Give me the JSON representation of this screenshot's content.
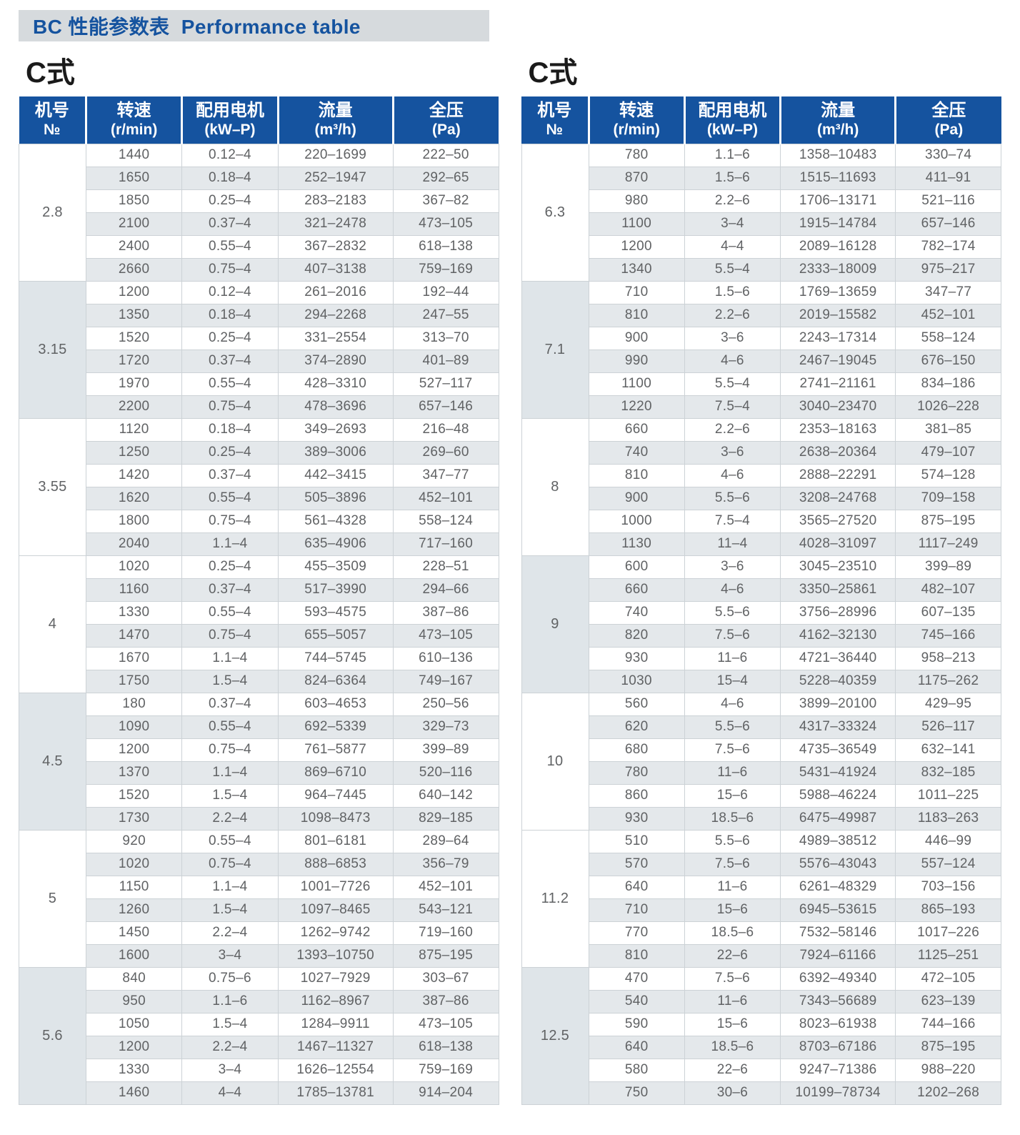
{
  "header": {
    "title": "BC 性能参数表  Performance table"
  },
  "colors": {
    "accent_blue": "#15539f",
    "title_bar_bg": "#d6dadd",
    "row_stripe": "#e4e8eb",
    "group_shade": "#dfe5e9",
    "grid_border": "#ccd2d6",
    "data_text": "#606264",
    "section_title": "#1a1a1a"
  },
  "columns": [
    {
      "key": "no",
      "label": "机号",
      "sub": "№"
    },
    {
      "key": "speed",
      "label": "转速",
      "sub": "(r/min)"
    },
    {
      "key": "motor",
      "label": "配用电机",
      "sub": "(kW–P)"
    },
    {
      "key": "flow",
      "label": "流量",
      "sub": "(m³/h)"
    },
    {
      "key": "pressure",
      "label": "全压",
      "sub": "(Pa)"
    }
  ],
  "tables": [
    {
      "title": "C式",
      "groups": [
        {
          "no": "2.8",
          "shaded": false,
          "rows": [
            [
              "1440",
              "0.12–4",
              "220–1699",
              "222–50"
            ],
            [
              "1650",
              "0.18–4",
              "252–1947",
              "292–65"
            ],
            [
              "1850",
              "0.25–4",
              "283–2183",
              "367–82"
            ],
            [
              "2100",
              "0.37–4",
              "321–2478",
              "473–105"
            ],
            [
              "2400",
              "0.55–4",
              "367–2832",
              "618–138"
            ],
            [
              "2660",
              "0.75–4",
              "407–3138",
              "759–169"
            ]
          ]
        },
        {
          "no": "3.15",
          "shaded": true,
          "rows": [
            [
              "1200",
              "0.12–4",
              "261–2016",
              "192–44"
            ],
            [
              "1350",
              "0.18–4",
              "294–2268",
              "247–55"
            ],
            [
              "1520",
              "0.25–4",
              "331–2554",
              "313–70"
            ],
            [
              "1720",
              "0.37–4",
              "374–2890",
              "401–89"
            ],
            [
              "1970",
              "0.55–4",
              "428–3310",
              "527–117"
            ],
            [
              "2200",
              "0.75–4",
              "478–3696",
              "657–146"
            ]
          ]
        },
        {
          "no": "3.55",
          "shaded": false,
          "rows": [
            [
              "1120",
              "0.18–4",
              "349–2693",
              "216–48"
            ],
            [
              "1250",
              "0.25–4",
              "389–3006",
              "269–60"
            ],
            [
              "1420",
              "0.37–4",
              "442–3415",
              "347–77"
            ],
            [
              "1620",
              "0.55–4",
              "505–3896",
              "452–101"
            ],
            [
              "1800",
              "0.75–4",
              "561–4328",
              "558–124"
            ],
            [
              "2040",
              "1.1–4",
              "635–4906",
              "717–160"
            ]
          ]
        },
        {
          "no": "4",
          "shaded": false,
          "rows": [
            [
              "1020",
              "0.25–4",
              "455–3509",
              "228–51"
            ],
            [
              "1160",
              "0.37–4",
              "517–3990",
              "294–66"
            ],
            [
              "1330",
              "0.55–4",
              "593–4575",
              "387–86"
            ],
            [
              "1470",
              "0.75–4",
              "655–5057",
              "473–105"
            ],
            [
              "1670",
              "1.1–4",
              "744–5745",
              "610–136"
            ],
            [
              "1750",
              "1.5–4",
              "824–6364",
              "749–167"
            ]
          ]
        },
        {
          "no": "4.5",
          "shaded": true,
          "rows": [
            [
              "180",
              "0.37–4",
              "603–4653",
              "250–56"
            ],
            [
              "1090",
              "0.55–4",
              "692–5339",
              "329–73"
            ],
            [
              "1200",
              "0.75–4",
              "761–5877",
              "399–89"
            ],
            [
              "1370",
              "1.1–4",
              "869–6710",
              "520–116"
            ],
            [
              "1520",
              "1.5–4",
              "964–7445",
              "640–142"
            ],
            [
              "1730",
              "2.2–4",
              "1098–8473",
              "829–185"
            ]
          ]
        },
        {
          "no": "5",
          "shaded": false,
          "rows": [
            [
              "920",
              "0.55–4",
              "801–6181",
              "289–64"
            ],
            [
              "1020",
              "0.75–4",
              "888–6853",
              "356–79"
            ],
            [
              "1150",
              "1.1–4",
              "1001–7726",
              "452–101"
            ],
            [
              "1260",
              "1.5–4",
              "1097–8465",
              "543–121"
            ],
            [
              "1450",
              "2.2–4",
              "1262–9742",
              "719–160"
            ],
            [
              "1600",
              "3–4",
              "1393–10750",
              "875–195"
            ]
          ]
        },
        {
          "no": "5.6",
          "shaded": true,
          "rows": [
            [
              "840",
              "0.75–6",
              "1027–7929",
              "303–67"
            ],
            [
              "950",
              "1.1–6",
              "1162–8967",
              "387–86"
            ],
            [
              "1050",
              "1.5–4",
              "1284–9911",
              "473–105"
            ],
            [
              "1200",
              "2.2–4",
              "1467–11327",
              "618–138"
            ],
            [
              "1330",
              "3–4",
              "1626–12554",
              "759–169"
            ],
            [
              "1460",
              "4–4",
              "1785–13781",
              "914–204"
            ]
          ]
        }
      ]
    },
    {
      "title": "C式",
      "groups": [
        {
          "no": "6.3",
          "shaded": false,
          "rows": [
            [
              "780",
              "1.1–6",
              "1358–10483",
              "330–74"
            ],
            [
              "870",
              "1.5–6",
              "1515–11693",
              "411–91"
            ],
            [
              "980",
              "2.2–6",
              "1706–13171",
              "521–116"
            ],
            [
              "1100",
              "3–4",
              "1915–14784",
              "657–146"
            ],
            [
              "1200",
              "4–4",
              "2089–16128",
              "782–174"
            ],
            [
              "1340",
              "5.5–4",
              "2333–18009",
              "975–217"
            ]
          ]
        },
        {
          "no": "7.1",
          "shaded": true,
          "rows": [
            [
              "710",
              "1.5–6",
              "1769–13659",
              "347–77"
            ],
            [
              "810",
              "2.2–6",
              "2019–15582",
              "452–101"
            ],
            [
              "900",
              "3–6",
              "2243–17314",
              "558–124"
            ],
            [
              "990",
              "4–6",
              "2467–19045",
              "676–150"
            ],
            [
              "1100",
              "5.5–4",
              "2741–21161",
              "834–186"
            ],
            [
              "1220",
              "7.5–4",
              "3040–23470",
              "1026–228"
            ]
          ]
        },
        {
          "no": "8",
          "shaded": false,
          "rows": [
            [
              "660",
              "2.2–6",
              "2353–18163",
              "381–85"
            ],
            [
              "740",
              "3–6",
              "2638–20364",
              "479–107"
            ],
            [
              "810",
              "4–6",
              "2888–22291",
              "574–128"
            ],
            [
              "900",
              "5.5–6",
              "3208–24768",
              "709–158"
            ],
            [
              "1000",
              "7.5–4",
              "3565–27520",
              "875–195"
            ],
            [
              "1130",
              "11–4",
              "4028–31097",
              "1117–249"
            ]
          ]
        },
        {
          "no": "9",
          "shaded": true,
          "rows": [
            [
              "600",
              "3–6",
              "3045–23510",
              "399–89"
            ],
            [
              "660",
              "4–6",
              "3350–25861",
              "482–107"
            ],
            [
              "740",
              "5.5–6",
              "3756–28996",
              "607–135"
            ],
            [
              "820",
              "7.5–6",
              "4162–32130",
              "745–166"
            ],
            [
              "930",
              "11–6",
              "4721–36440",
              "958–213"
            ],
            [
              "1030",
              "15–4",
              "5228–40359",
              "1175–262"
            ]
          ]
        },
        {
          "no": "10",
          "shaded": false,
          "rows": [
            [
              "560",
              "4–6",
              "3899–20100",
              "429–95"
            ],
            [
              "620",
              "5.5–6",
              "4317–33324",
              "526–117"
            ],
            [
              "680",
              "7.5–6",
              "4735–36549",
              "632–141"
            ],
            [
              "780",
              "11–6",
              "5431–41924",
              "832–185"
            ],
            [
              "860",
              "15–6",
              "5988–46224",
              "1011–225"
            ],
            [
              "930",
              "18.5–6",
              "6475–49987",
              "1183–263"
            ]
          ]
        },
        {
          "no": "11.2",
          "shaded": false,
          "rows": [
            [
              "510",
              "5.5–6",
              "4989–38512",
              "446–99"
            ],
            [
              "570",
              "7.5–6",
              "5576–43043",
              "557–124"
            ],
            [
              "640",
              "11–6",
              "6261–48329",
              "703–156"
            ],
            [
              "710",
              "15–6",
              "6945–53615",
              "865–193"
            ],
            [
              "770",
              "18.5–6",
              "7532–58146",
              "1017–226"
            ],
            [
              "810",
              "22–6",
              "7924–61166",
              "1125–251"
            ]
          ]
        },
        {
          "no": "12.5",
          "shaded": true,
          "rows": [
            [
              "470",
              "7.5–6",
              "6392–49340",
              "472–105"
            ],
            [
              "540",
              "11–6",
              "7343–56689",
              "623–139"
            ],
            [
              "590",
              "15–6",
              "8023–61938",
              "744–166"
            ],
            [
              "640",
              "18.5–6",
              "8703–67186",
              "875–195"
            ],
            [
              "580",
              "22–6",
              "9247–71386",
              "988–220"
            ],
            [
              "750",
              "30–6",
              "10199–78734",
              "1202–268"
            ]
          ]
        }
      ]
    }
  ]
}
